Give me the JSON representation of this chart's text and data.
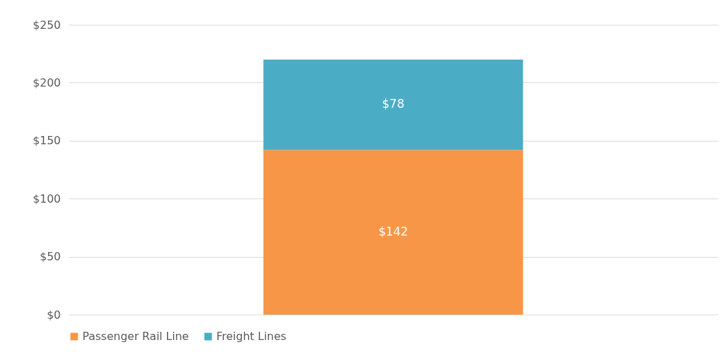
{
  "chart_data": {
    "type": "bar",
    "stacked": true,
    "categories": [
      null
    ],
    "series": [
      {
        "name": "Passenger Rail Line",
        "color": "#f79646",
        "values": [
          142
        ],
        "value_labels": [
          "$142"
        ]
      },
      {
        "name": "Freight Lines",
        "color": "#4bacc6",
        "values": [
          78
        ],
        "value_labels": [
          "$78"
        ]
      }
    ],
    "ylim": [
      0,
      250
    ],
    "yticks": [
      {
        "value": 0,
        "label": "$0"
      },
      {
        "value": 50,
        "label": "$50"
      },
      {
        "value": 100,
        "label": "$100"
      },
      {
        "value": 150,
        "label": "$150"
      },
      {
        "value": 200,
        "label": "$200"
      },
      {
        "value": 250,
        "label": "$250"
      }
    ],
    "grid": "y",
    "legend": "bottom"
  }
}
